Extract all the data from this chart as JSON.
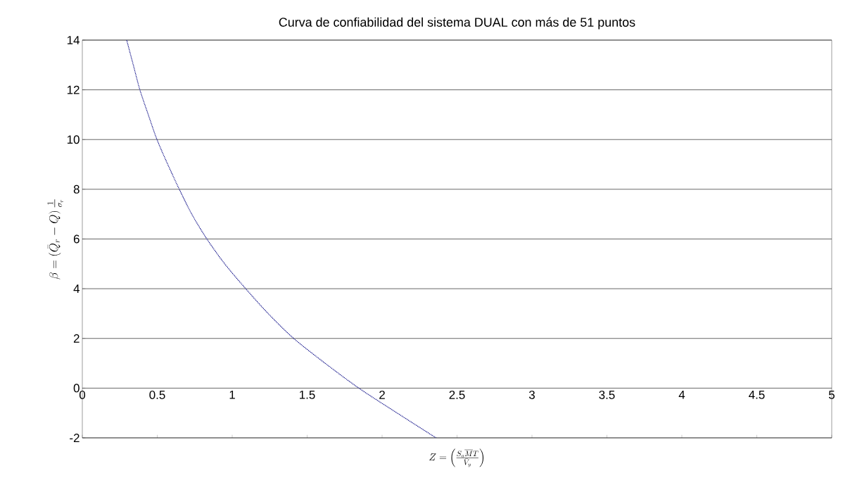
{
  "chart_data": {
    "type": "line",
    "title": "Curva de confiabilidad del sistema DUAL con más de 51 puntos",
    "xlabel": "Z=\\left(\\frac{S_a\\overline{M}T}{\\bar{V}_y}\\right)",
    "ylabel": "\\beta=(\\bar{Q}_r-Q)\\,\\frac{1}{\\sigma_r}",
    "xlim": [
      0,
      5
    ],
    "xticks": [
      0,
      0.5,
      1,
      1.5,
      2,
      2.5,
      3,
      3.5,
      4,
      4.5,
      5
    ],
    "ylim": [
      -2,
      14
    ],
    "yticks": [
      -2,
      0,
      2,
      4,
      6,
      8,
      10,
      12,
      14
    ],
    "grid": "y",
    "marker": "none",
    "series": [
      {
        "color": "#000080",
        "line_style": "dotted",
        "x": [
          0.296,
          0.34,
          0.384,
          0.44,
          0.498,
          0.57,
          0.647,
          0.73,
          0.831,
          0.95,
          1.09,
          1.24,
          1.41,
          1.62,
          1.845,
          2.1,
          2.36
        ],
        "values": [
          14,
          13,
          12,
          11,
          10,
          9,
          8,
          7,
          6,
          5,
          4,
          3,
          2,
          1,
          0,
          -1,
          -2
        ]
      }
    ]
  }
}
